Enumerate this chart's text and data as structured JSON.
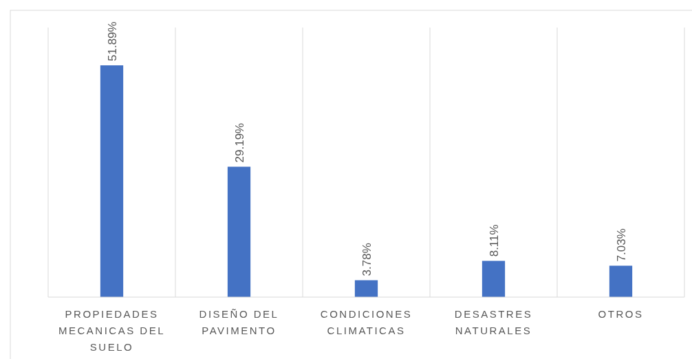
{
  "chart_data": {
    "type": "bar",
    "categories": [
      "PROPIEDADES MECANICAS DEL SUELO",
      "DISEÑO DEL PAVIMENTO",
      "CONDICIONES CLIMATICAS",
      "DESASTRES NATURALES",
      "OTROS"
    ],
    "values": [
      51.89,
      29.19,
      3.78,
      8.11,
      7.03
    ],
    "value_labels": [
      "51.89%",
      "29.19%",
      "3.78%",
      "8.11%",
      "7.03%"
    ],
    "color": "#4472c4",
    "grid": "x"
  }
}
